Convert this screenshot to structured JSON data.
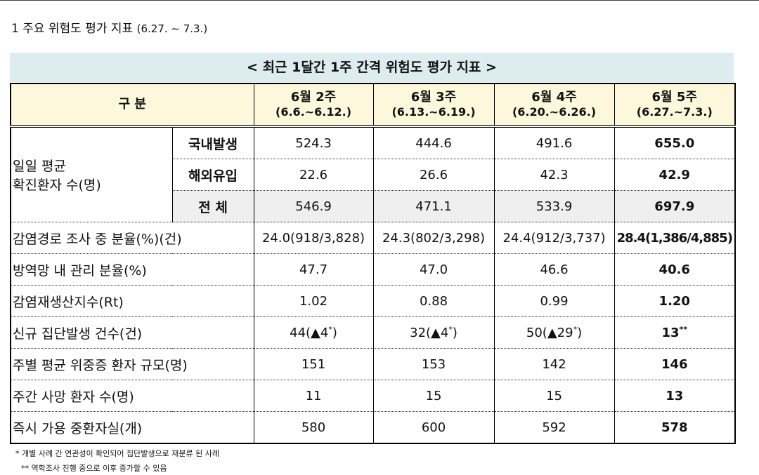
{
  "header": {
    "title": "1 주요 위험도 평가 지표",
    "period": "(6.27. ~ 7.3.)"
  },
  "table": {
    "caption": "< 최근 1달간 1주 간격 위험도 평가 지표 >",
    "corner": "구 분",
    "columns": [
      {
        "week": "6월 2주",
        "range": "(6.6.~6.12.)"
      },
      {
        "week": "6월 3주",
        "range": "(6.13.~6.19.)"
      },
      {
        "week": "6월 4주",
        "range": "(6.20.~6.26.)"
      },
      {
        "week": "6월 5주",
        "range": "(6.27.~7.3.)"
      }
    ],
    "group": [
      "일일 평균",
      "확진환자 수(명)"
    ],
    "rows": [
      {
        "label": "국내발생",
        "cells": [
          "524.3",
          "444.6",
          "491.6",
          "655.0"
        ]
      },
      {
        "label": "해외유입",
        "cells": [
          "22.6",
          "26.6",
          "42.3",
          "42.9"
        ]
      },
      {
        "label": "전 체",
        "cells": [
          "546.9",
          "471.1",
          "533.9",
          "697.9"
        ]
      },
      {
        "label": "감염경로 조사 중 분율(%)(건)",
        "cells": [
          "24.0(918/3,828)",
          "24.3(802/3,298)",
          "24.4(912/3,737)",
          "28.4(1,386/4,885)"
        ]
      },
      {
        "label": "방역망 내 관리 분율(%)",
        "cells": [
          "47.7",
          "47.0",
          "46.6",
          "40.6"
        ]
      },
      {
        "label": "감염재생산지수(Rt)",
        "cells": [
          "1.02",
          "0.88",
          "0.99",
          "1.20"
        ]
      },
      {
        "label": "신규 집단발생 건수(건)",
        "cells": [
          {
            "text": "44(▲4",
            "sup": "*",
            "after": ")"
          },
          {
            "text": "32(▲4",
            "sup": "*",
            "after": ")"
          },
          {
            "text": "50(▲29",
            "sup": "*",
            "after": ")"
          },
          {
            "text": "13",
            "sup": "**"
          }
        ]
      },
      {
        "label": "주별 평균 위중증 환자 규모(명)",
        "cells": [
          "151",
          "153",
          "142",
          "146"
        ]
      },
      {
        "label": "주간 사망 환자 수(명)",
        "cells": [
          "11",
          "15",
          "15",
          "13"
        ]
      },
      {
        "label": "즉시 가용 중환자실(개)",
        "cells": [
          "580",
          "600",
          "592",
          "578"
        ]
      }
    ]
  },
  "footnotes": [
    "* 개별 사례 간 연관성이 확인되어 집단발생으로 재분류 된 사례",
    "** 역학조사 진행 중으로 이후 증가할 수 있음"
  ]
}
